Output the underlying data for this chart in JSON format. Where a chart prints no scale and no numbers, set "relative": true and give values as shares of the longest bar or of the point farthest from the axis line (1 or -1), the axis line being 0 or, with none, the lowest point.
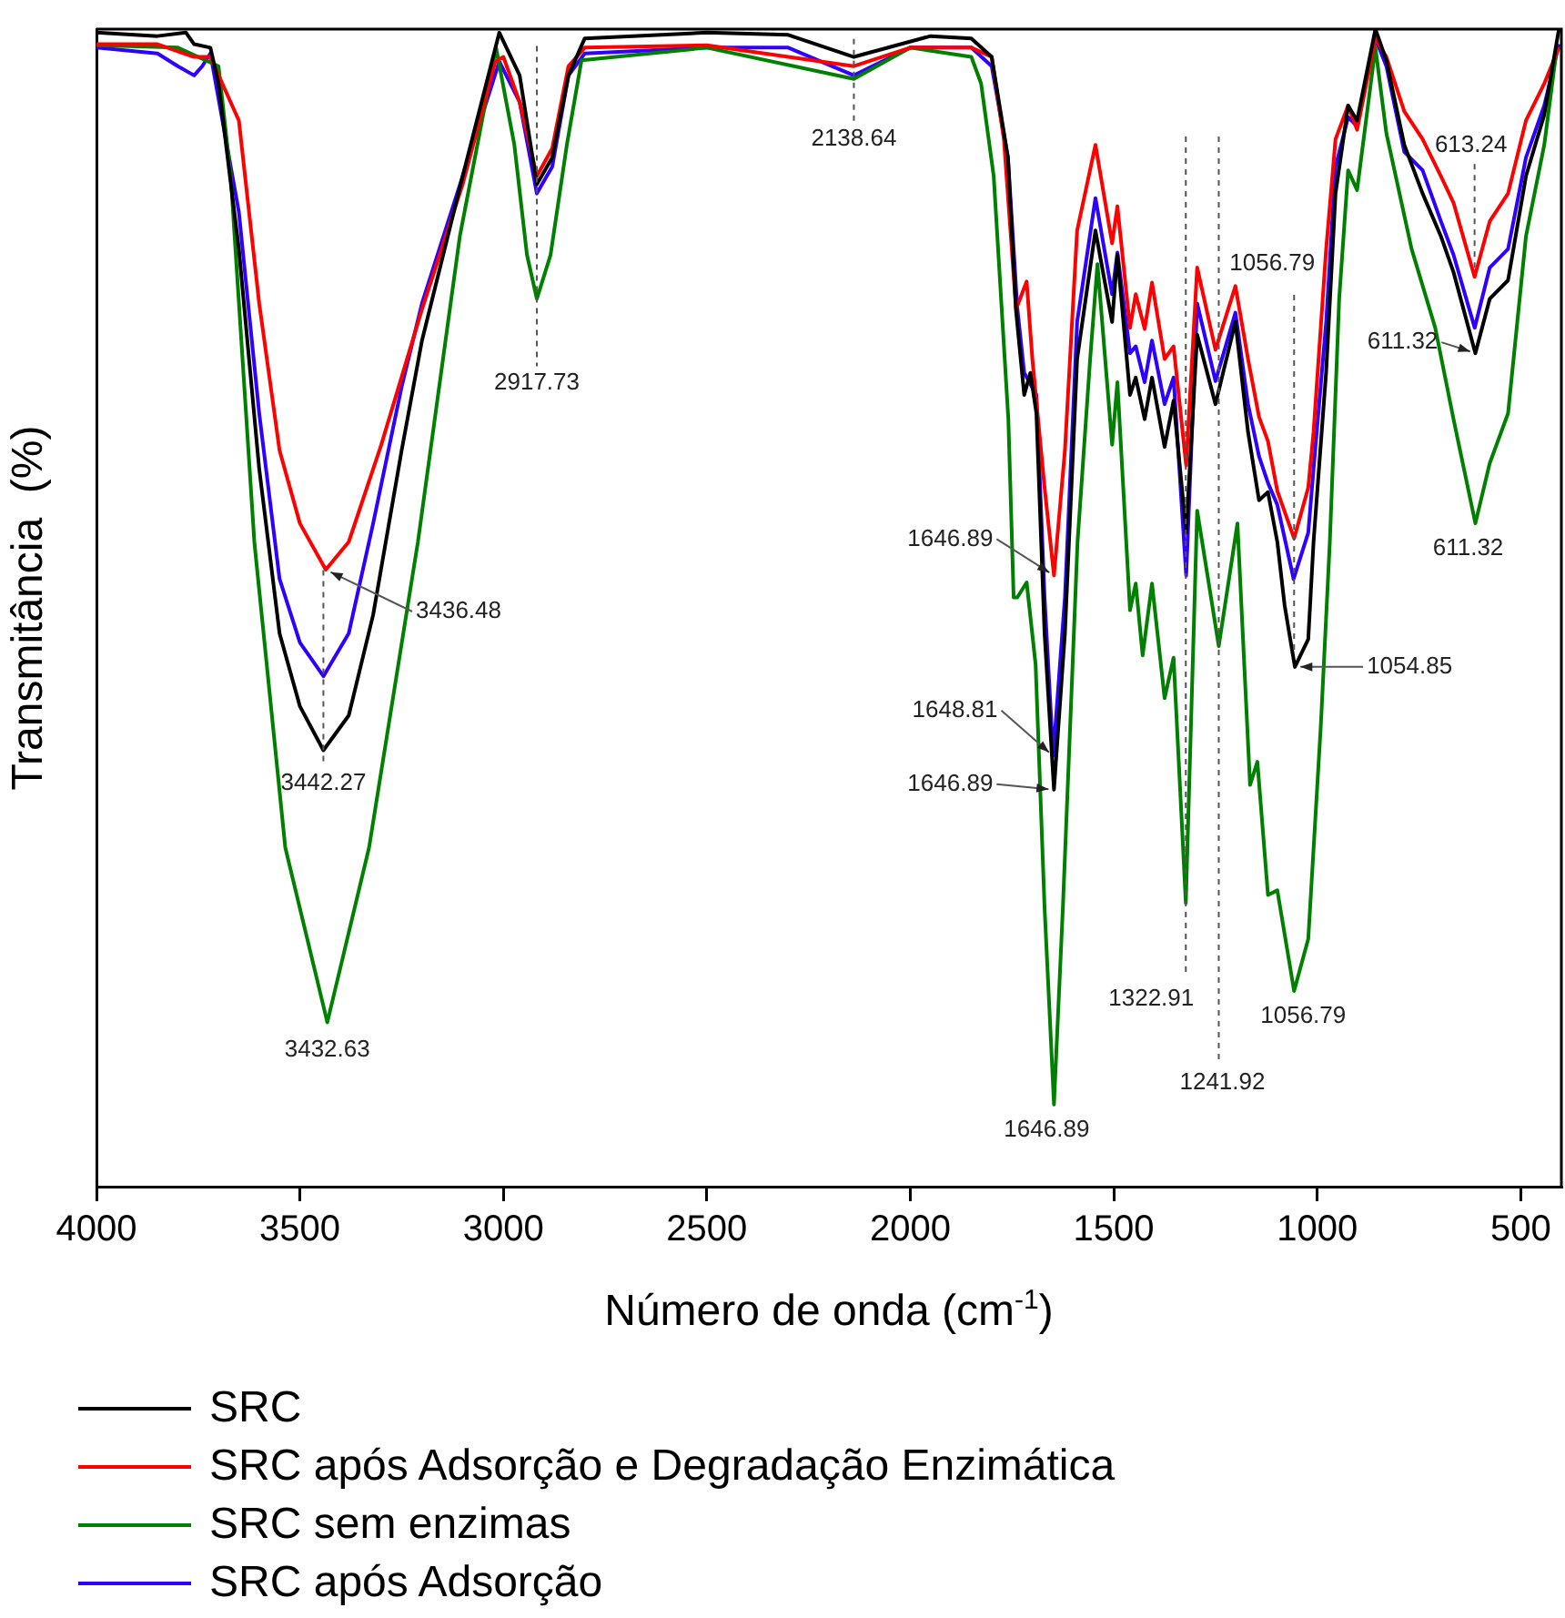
{
  "chart_data": {
    "type": "line",
    "relative": true,
    "xlabel": "Número de onda (cm$^{-1}$)",
    "ylabel": "Transmitância  (%)",
    "xlim": [
      4000,
      400
    ],
    "xticks": [
      4000,
      3500,
      3000,
      2500,
      2000,
      1500,
      1000,
      500
    ],
    "legend": "bottom",
    "marker": "none",
    "ref_lines": [
      {
        "axis": "x",
        "value": 1322.91,
        "label": "1322.91",
        "line_style": "dashed"
      },
      {
        "axis": "x",
        "value": 1241.92,
        "label": "1241.92",
        "line_style": "dashed"
      },
      {
        "axis": "x",
        "value": 1056.79,
        "label": "1056.79",
        "line_style": "dashed"
      }
    ],
    "series": [
      {
        "name": "SRC",
        "color": "#000000",
        "x": [
          4000,
          3850,
          3780,
          3760,
          3720,
          3700,
          3650,
          3600,
          3550,
          3500,
          3442.27,
          3380,
          3320,
          3250,
          3200,
          3100,
          3010,
          2960,
          2917.73,
          2880,
          2840,
          2800,
          2500,
          2300,
          2138.64,
          1950,
          1850,
          1800,
          1760,
          1740,
          1720,
          1705,
          1690,
          1670,
          1646.89,
          1620,
          1590,
          1545,
          1504,
          1491,
          1460,
          1446,
          1424,
          1406,
          1375,
          1353,
          1322,
          1295,
          1250,
          1201,
          1170,
          1143,
          1121,
          1098,
          1080,
          1054.85,
          1022,
          1009,
          978,
          955,
          924,
          902,
          857,
          830,
          786,
          741,
          696,
          665,
          611.32,
          576,
          531,
          487,
          442,
          406
        ],
        "values": [
          0.997,
          0.994,
          0.997,
          0.987,
          0.984,
          0.953,
          0.81,
          0.62,
          0.478,
          0.415,
          0.377,
          0.407,
          0.494,
          0.636,
          0.731,
          0.873,
          0.997,
          0.96,
          0.866,
          0.889,
          0.96,
          0.992,
          0.997,
          0.995,
          0.976,
          0.994,
          0.992,
          0.976,
          0.889,
          0.756,
          0.684,
          0.703,
          0.668,
          0.478,
          0.343,
          0.478,
          0.715,
          0.826,
          0.747,
          0.805,
          0.684,
          0.699,
          0.663,
          0.699,
          0.639,
          0.679,
          0.565,
          0.736,
          0.676,
          0.747,
          0.652,
          0.593,
          0.6,
          0.557,
          0.502,
          0.449,
          0.473,
          0.557,
          0.704,
          0.858,
          0.934,
          0.921,
          1.0,
          0.973,
          0.9,
          0.858,
          0.821,
          0.79,
          0.72,
          0.767,
          0.783,
          0.873,
          0.926,
          1.0
        ]
      },
      {
        "name": "SRC após Adsorção e Degradação Enzimática",
        "color": "#ff0000",
        "x": [
          4000,
          3850,
          3760,
          3720,
          3650,
          3600,
          3550,
          3500,
          3436.48,
          3380,
          3300,
          3200,
          3100,
          3020,
          3000,
          2960,
          2917.73,
          2880,
          2840,
          2800,
          2500,
          2138.64,
          2000,
          1850,
          1800,
          1770,
          1740,
          1714,
          1700,
          1670,
          1646.89,
          1620,
          1590,
          1545,
          1504,
          1491,
          1460,
          1446,
          1424,
          1406,
          1375,
          1353,
          1322,
          1295,
          1250,
          1201,
          1170,
          1143,
          1121,
          1098,
          1056.79,
          1022,
          1009,
          978,
          955,
          924,
          902,
          857,
          830,
          786,
          741,
          696,
          665,
          613.24,
          576,
          531,
          487,
          442,
          406
        ],
        "values": [
          0.987,
          0.987,
          0.976,
          0.976,
          0.921,
          0.763,
          0.636,
          0.573,
          0.533,
          0.557,
          0.641,
          0.758,
          0.866,
          0.972,
          0.976,
          0.937,
          0.873,
          0.897,
          0.968,
          0.984,
          0.986,
          0.968,
          0.984,
          0.984,
          0.976,
          0.905,
          0.758,
          0.782,
          0.715,
          0.604,
          0.528,
          0.636,
          0.826,
          0.9,
          0.815,
          0.847,
          0.742,
          0.771,
          0.741,
          0.781,
          0.715,
          0.726,
          0.623,
          0.794,
          0.723,
          0.778,
          0.715,
          0.665,
          0.644,
          0.601,
          0.56,
          0.604,
          0.652,
          0.81,
          0.905,
          0.934,
          0.913,
          0.992,
          0.976,
          0.929,
          0.905,
          0.873,
          0.85,
          0.786,
          0.834,
          0.858,
          0.921,
          0.953,
          0.984
        ]
      },
      {
        "name": "SRC sem enzimas",
        "color": "#008000",
        "x": [
          4000,
          3800,
          3700,
          3670,
          3612,
          3536,
          3432.63,
          3330,
          3210,
          3107,
          3018,
          2973,
          2942,
          2917.73,
          2884,
          2844,
          2808,
          2500,
          2138.64,
          2000,
          1850,
          1826,
          1795,
          1759,
          1746,
          1737,
          1714,
          1692,
          1670,
          1646.89,
          1625,
          1589,
          1558,
          1540,
          1504,
          1491,
          1460,
          1446,
          1429,
          1406,
          1375,
          1353,
          1322.91,
          1295,
          1241.92,
          1196,
          1165,
          1147,
          1121,
          1098,
          1056.79,
          1022,
          991,
          969,
          946,
          924,
          902,
          857,
          830,
          768,
          710,
          665,
          611.32,
          576,
          531,
          487,
          442,
          411
        ],
        "values": [
          0.986,
          0.984,
          0.968,
          0.873,
          0.557,
          0.293,
          0.142,
          0.293,
          0.557,
          0.821,
          0.984,
          0.9,
          0.805,
          0.767,
          0.805,
          0.9,
          0.973,
          0.984,
          0.957,
          0.984,
          0.976,
          0.953,
          0.873,
          0.663,
          0.509,
          0.509,
          0.522,
          0.451,
          0.241,
          0.071,
          0.241,
          0.557,
          0.715,
          0.797,
          0.641,
          0.695,
          0.498,
          0.521,
          0.459,
          0.521,
          0.422,
          0.457,
          0.245,
          0.584,
          0.467,
          0.573,
          0.347,
          0.367,
          0.252,
          0.256,
          0.169,
          0.214,
          0.399,
          0.557,
          0.767,
          0.878,
          0.861,
          0.984,
          0.91,
          0.81,
          0.742,
          0.663,
          0.573,
          0.625,
          0.668,
          0.821,
          0.9,
          0.984
        ]
      },
      {
        "name": "SRC após Adsorção",
        "color": "#2e00ff",
        "x": [
          4000,
          3850,
          3800,
          3760,
          3740,
          3720,
          3650,
          3600,
          3550,
          3500,
          3442,
          3380,
          3320,
          3250,
          3200,
          3100,
          3010,
          2960,
          2917.73,
          2880,
          2840,
          2800,
          2500,
          2300,
          2138.64,
          2000,
          1850,
          1800,
          1760,
          1737,
          1720,
          1690,
          1670,
          1648.81,
          1620,
          1590,
          1545,
          1504,
          1491,
          1460,
          1446,
          1424,
          1406,
          1375,
          1353,
          1322,
          1295,
          1250,
          1201,
          1170,
          1143,
          1121,
          1098,
          1058,
          1022,
          1009,
          978,
          955,
          924,
          902,
          857,
          830,
          786,
          741,
          696,
          665,
          613,
          576,
          531,
          487,
          442,
          406
        ],
        "values": [
          0.984,
          0.979,
          0.968,
          0.96,
          0.968,
          0.979,
          0.842,
          0.668,
          0.525,
          0.47,
          0.441,
          0.478,
          0.573,
          0.691,
          0.763,
          0.873,
          0.972,
          0.937,
          0.858,
          0.881,
          0.96,
          0.979,
          0.984,
          0.984,
          0.96,
          0.984,
          0.984,
          0.968,
          0.889,
          0.759,
          0.703,
          0.684,
          0.509,
          0.372,
          0.509,
          0.747,
          0.854,
          0.771,
          0.807,
          0.72,
          0.726,
          0.695,
          0.731,
          0.676,
          0.699,
          0.528,
          0.763,
          0.696,
          0.755,
          0.676,
          0.631,
          0.608,
          0.589,
          0.525,
          0.565,
          0.62,
          0.747,
          0.881,
          0.924,
          0.916,
          0.992,
          0.968,
          0.894,
          0.878,
          0.834,
          0.805,
          0.742,
          0.794,
          0.81,
          0.889,
          0.934,
          0.987
        ]
      }
    ],
    "annotations": [
      {
        "text": "3436.48",
        "x": 3436.48,
        "y": 0.533
      },
      {
        "text": "3442.27",
        "x": 3442.27,
        "y": 0.377
      },
      {
        "text": "3432.63",
        "x": 3432.63,
        "y": 0.142
      },
      {
        "text": "2917.73",
        "x": 2917.73,
        "y": 0.767
      },
      {
        "text": "2138.64",
        "x": 2138.64,
        "y": 0.957
      },
      {
        "text": "1646.89",
        "x": 1646.89,
        "y": 0.528
      },
      {
        "text": "1648.81",
        "x": 1648.81,
        "y": 0.372
      },
      {
        "text": "1646.89",
        "x": 1646.89,
        "y": 0.343
      },
      {
        "text": "1646.89",
        "x": 1646.89,
        "y": 0.071
      },
      {
        "text": "1054.85",
        "x": 1054.85,
        "y": 0.449
      },
      {
        "text": "1056.79",
        "x": 1056.79,
        "y": 0.169
      },
      {
        "text": "613.24",
        "x": 613.24,
        "y": 0.786
      },
      {
        "text": "611.32",
        "x": 611.32,
        "y": 0.72
      },
      {
        "text": "611.32",
        "x": 611.32,
        "y": 0.573
      }
    ]
  }
}
